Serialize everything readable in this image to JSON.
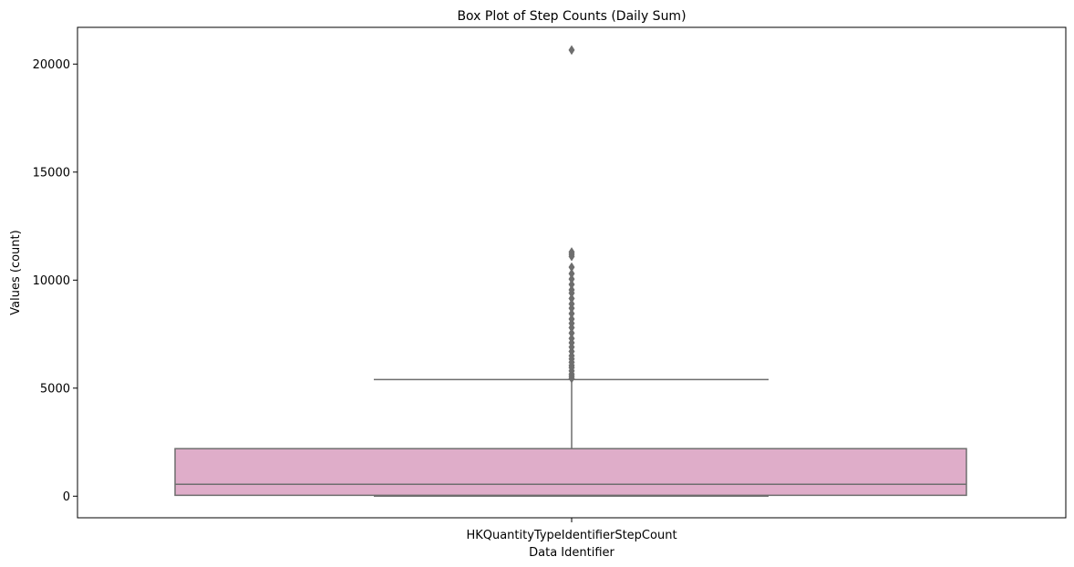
{
  "chart_data": {
    "type": "box",
    "title": "Box Plot of Step Counts (Daily Sum)",
    "xlabel": "Data Identifier",
    "ylabel": "Values (count)",
    "categories": [
      "HKQuantityTypeIdentifierStepCount"
    ],
    "ylim": [
      -1000,
      21700
    ],
    "yticks": [
      0,
      5000,
      10000,
      15000,
      20000
    ],
    "grid": false,
    "box": {
      "min": 0,
      "q1": 40,
      "median": 550,
      "q3": 2200,
      "max": 5400,
      "fill": "#dfadc9",
      "line_color": "#6e6e6e"
    },
    "outliers": [
      5450,
      5550,
      5650,
      5800,
      5950,
      6050,
      6200,
      6350,
      6500,
      6700,
      6900,
      7100,
      7300,
      7550,
      7800,
      8000,
      8200,
      8450,
      8700,
      8900,
      9150,
      9400,
      9550,
      9800,
      10050,
      10300,
      10600,
      11100,
      11200,
      11300,
      20650
    ]
  }
}
